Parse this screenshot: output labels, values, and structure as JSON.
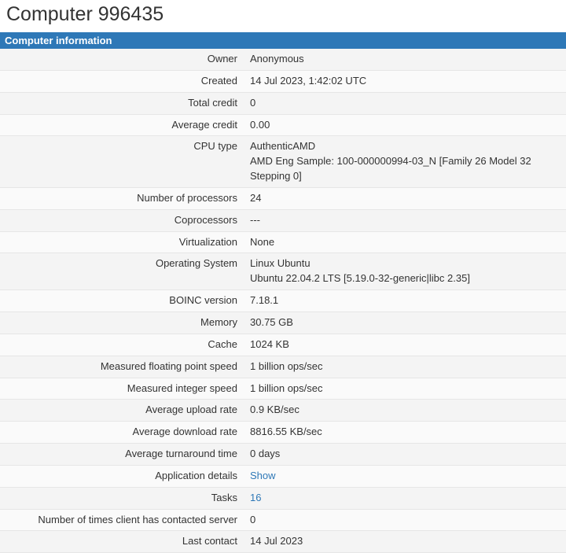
{
  "title": "Computer 996435",
  "section_header": "Computer information",
  "rows": [
    {
      "label": "Owner",
      "value": "Anonymous"
    },
    {
      "label": "Created",
      "value": "14 Jul 2023, 1:42:02 UTC"
    },
    {
      "label": "Total credit",
      "value": "0"
    },
    {
      "label": "Average credit",
      "value": "0.00"
    },
    {
      "label": "CPU type",
      "value": "AuthenticAMD",
      "value2": "AMD Eng Sample: 100-000000994-03_N [Family 26 Model 32 Stepping 0]"
    },
    {
      "label": "Number of processors",
      "value": "24"
    },
    {
      "label": "Coprocessors",
      "value": "---"
    },
    {
      "label": "Virtualization",
      "value": "None"
    },
    {
      "label": "Operating System",
      "value": "Linux Ubuntu",
      "value2": "Ubuntu 22.04.2 LTS [5.19.0-32-generic|libc 2.35]"
    },
    {
      "label": "BOINC version",
      "value": "7.18.1"
    },
    {
      "label": "Memory",
      "value": "30.75 GB"
    },
    {
      "label": "Cache",
      "value": "1024 KB"
    },
    {
      "label": "Measured floating point speed",
      "value": "1 billion ops/sec"
    },
    {
      "label": "Measured integer speed",
      "value": "1 billion ops/sec"
    },
    {
      "label": "Average upload rate",
      "value": "0.9 KB/sec"
    },
    {
      "label": "Average download rate",
      "value": "8816.55 KB/sec"
    },
    {
      "label": "Average turnaround time",
      "value": "0 days"
    },
    {
      "label": "Application details",
      "value": "Show",
      "link": true
    },
    {
      "label": "Tasks",
      "value": "16",
      "link": true
    },
    {
      "label": "Number of times client has contacted server",
      "value": "0"
    },
    {
      "label": "Last contact",
      "value": "14 Jul 2023"
    }
  ],
  "colors": {
    "header_bg": "#2e78b7",
    "header_text": "#ffffff",
    "link": "#2e78b7",
    "row_alt_a": "#f4f4f4",
    "row_alt_b": "#fafafa",
    "border": "#e6e6e6"
  }
}
